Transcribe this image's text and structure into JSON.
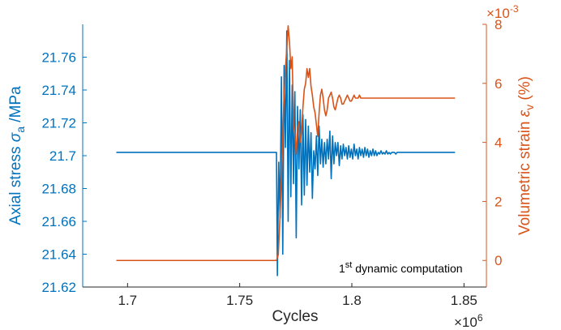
{
  "chart_data": {
    "type": "line",
    "xlabel": "Cycles",
    "x_exponent_label": "×10",
    "x_exponent": "6",
    "xlim": [
      1.68,
      1.86
    ],
    "x_ticks": [
      "1.7",
      "1.75",
      "1.8",
      "1.85"
    ],
    "x_tick_values": [
      1.7,
      1.75,
      1.8,
      1.85
    ],
    "left_axis": {
      "label_prefix": "Axial stress ",
      "label_symbol": "σ",
      "label_sub": "a",
      "label_suffix": " /MPa",
      "ylim": [
        21.62,
        21.78
      ],
      "ticks": [
        "21.62",
        "21.64",
        "21.66",
        "21.68",
        "21.7",
        "21.72",
        "21.74",
        "21.76"
      ],
      "tick_values": [
        21.62,
        21.64,
        21.66,
        21.68,
        21.7,
        21.72,
        21.74,
        21.76
      ],
      "color": "#0072BD"
    },
    "right_axis": {
      "label_prefix": "Volumetric strain ",
      "label_symbol": "ε",
      "label_sub": "v",
      "label_suffix": " (%)",
      "exponent_label": "×10",
      "exponent": "-3",
      "ylim": [
        -0.9,
        8.0
      ],
      "ticks": [
        "0",
        "2",
        "4",
        "6",
        "8"
      ],
      "tick_values": [
        0,
        2,
        4,
        6,
        8
      ],
      "color": "#D95319"
    },
    "series": [
      {
        "axis": "left",
        "color": "#0072BD",
        "x": [
          1.695,
          1.7,
          1.72,
          1.74,
          1.76,
          1.7664,
          1.7668,
          1.7674,
          1.768,
          1.7686,
          1.7692,
          1.7698,
          1.7704,
          1.771,
          1.7716,
          1.7722,
          1.7728,
          1.7734,
          1.774,
          1.7746,
          1.7752,
          1.7758,
          1.7764,
          1.777,
          1.7776,
          1.7782,
          1.7788,
          1.7794,
          1.78,
          1.7806,
          1.7812,
          1.7818,
          1.7824,
          1.783,
          1.7836,
          1.7842,
          1.7848,
          1.7854,
          1.786,
          1.7866,
          1.7872,
          1.7878,
          1.7884,
          1.789,
          1.7896,
          1.7902,
          1.7908,
          1.7914,
          1.792,
          1.7926,
          1.7932,
          1.7938,
          1.7944,
          1.795,
          1.7956,
          1.7962,
          1.7968,
          1.7974,
          1.798,
          1.7986,
          1.7992,
          1.7998,
          1.8004,
          1.801,
          1.8016,
          1.8022,
          1.8028,
          1.8034,
          1.804,
          1.8046,
          1.8052,
          1.8058,
          1.8064,
          1.807,
          1.8076,
          1.8082,
          1.8088,
          1.8094,
          1.81,
          1.8106,
          1.8112,
          1.8118,
          1.8124,
          1.813,
          1.8136,
          1.8142,
          1.8148,
          1.8154,
          1.816,
          1.8166,
          1.8172,
          1.8178,
          1.8184,
          1.819,
          1.8196,
          1.8202,
          1.8208,
          1.8214,
          1.822,
          1.83,
          1.84,
          1.846
        ],
        "y": [
          21.702,
          21.702,
          21.702,
          21.702,
          21.702,
          21.702,
          21.627,
          21.696,
          21.662,
          21.748,
          21.64,
          21.755,
          21.705,
          21.776,
          21.66,
          21.758,
          21.675,
          21.743,
          21.683,
          21.739,
          21.65,
          21.73,
          21.692,
          21.728,
          21.67,
          21.725,
          21.676,
          21.722,
          21.682,
          21.718,
          21.69,
          21.714,
          21.674,
          21.703,
          21.692,
          21.712,
          21.688,
          21.718,
          21.695,
          21.71,
          21.693,
          21.708,
          21.695,
          21.71,
          21.698,
          21.715,
          21.686,
          21.712,
          21.695,
          21.708,
          21.7,
          21.708,
          21.694,
          21.706,
          21.698,
          21.707,
          21.7,
          21.705,
          21.698,
          21.706,
          21.699,
          21.704,
          21.698,
          21.707,
          21.7,
          21.704,
          21.698,
          21.705,
          21.7,
          21.704,
          21.699,
          21.705,
          21.7,
          21.704,
          21.699,
          21.703,
          21.7,
          21.704,
          21.7,
          21.703,
          21.7,
          21.702,
          21.701,
          21.703,
          21.701,
          21.702,
          21.701,
          21.703,
          21.701,
          21.702,
          21.701,
          21.702,
          21.702,
          21.702,
          21.701,
          21.702,
          21.702,
          21.702,
          21.702,
          21.702,
          21.702,
          21.702
        ]
      },
      {
        "axis": "right",
        "color": "#D95319",
        "x": [
          1.695,
          1.7,
          1.72,
          1.74,
          1.76,
          1.7664,
          1.7672,
          1.768,
          1.7688,
          1.7696,
          1.7704,
          1.771,
          1.7716,
          1.7722,
          1.7728,
          1.7734,
          1.774,
          1.7746,
          1.7752,
          1.7758,
          1.7764,
          1.777,
          1.7776,
          1.7782,
          1.7788,
          1.7794,
          1.78,
          1.7806,
          1.7812,
          1.7818,
          1.7824,
          1.783,
          1.7836,
          1.7842,
          1.7848,
          1.7854,
          1.786,
          1.7866,
          1.7872,
          1.7878,
          1.7884,
          1.789,
          1.7896,
          1.7902,
          1.7908,
          1.7914,
          1.792,
          1.7926,
          1.7932,
          1.7938,
          1.7944,
          1.795,
          1.7956,
          1.7962,
          1.7968,
          1.7974,
          1.798,
          1.7986,
          1.7992,
          1.7998,
          1.8004,
          1.801,
          1.8016,
          1.8022,
          1.8028,
          1.8034,
          1.804,
          1.805,
          1.806,
          1.807,
          1.808,
          1.81,
          1.815,
          1.82,
          1.83,
          1.84,
          1.846
        ],
        "y": [
          0,
          0,
          0,
          0,
          0,
          0,
          0.2,
          1.5,
          3.2,
          5.2,
          6.5,
          7.2,
          7.95,
          7.4,
          6.5,
          6.9,
          4.6,
          4.3,
          3.6,
          4.5,
          4.7,
          4.0,
          4.4,
          5.2,
          5.8,
          6.0,
          6.5,
          6.2,
          6.5,
          5.9,
          5.6,
          5.2,
          5.0,
          4.6,
          4.2,
          5.0,
          5.6,
          5.8,
          5.5,
          5.1,
          4.9,
          5.1,
          5.5,
          5.6,
          5.7,
          5.5,
          5.2,
          5.1,
          5.3,
          5.5,
          5.6,
          5.5,
          5.3,
          5.3,
          5.4,
          5.5,
          5.6,
          5.5,
          5.4,
          5.4,
          5.5,
          5.6,
          5.5,
          5.5,
          5.5,
          5.6,
          5.5,
          5.5,
          5.5,
          5.5,
          5.5,
          5.5,
          5.5,
          5.5,
          5.5,
          5.5,
          5.5
        ]
      }
    ],
    "annotation": {
      "prefix": "1",
      "sup": "st",
      "text": " dynamic computation"
    }
  }
}
